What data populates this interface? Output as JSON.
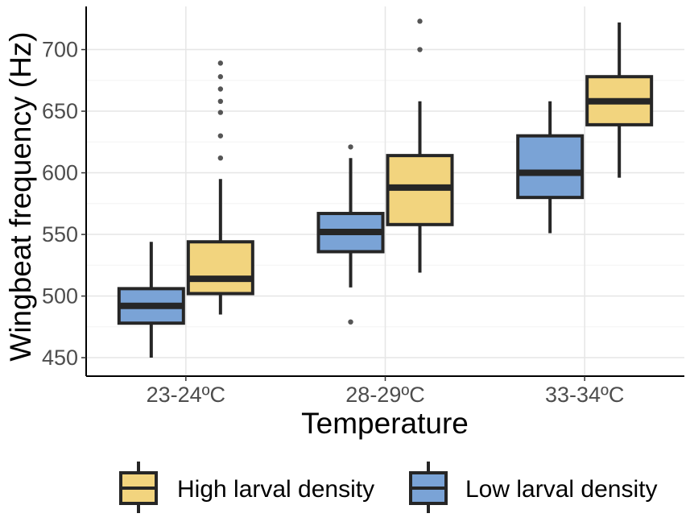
{
  "chart_data": {
    "type": "boxplot",
    "title": "",
    "xlabel": "Temperature",
    "ylabel": "Wingbeat frequency (Hz)",
    "ylim": [
      435,
      735
    ],
    "yticks": [
      450,
      500,
      550,
      600,
      650,
      700
    ],
    "categories": [
      "23-24ºC",
      "28-29ºC",
      "33-34ºC"
    ],
    "grid": true,
    "legend_position": "bottom",
    "series": [
      {
        "name": "Low larval density",
        "color": "#7aa3d6",
        "boxes": [
          {
            "whisker_low": 450,
            "q1": 478,
            "median": 492,
            "q3": 506,
            "whisker_high": 544,
            "outliers": []
          },
          {
            "whisker_low": 507,
            "q1": 536,
            "median": 552,
            "q3": 567,
            "whisker_high": 612,
            "outliers": [
              621,
              479
            ]
          },
          {
            "whisker_low": 551,
            "q1": 580,
            "median": 600,
            "q3": 630,
            "whisker_high": 658,
            "outliers": []
          }
        ]
      },
      {
        "name": "High larval density",
        "color": "#f2d47e",
        "boxes": [
          {
            "whisker_low": 485,
            "q1": 502,
            "median": 514,
            "q3": 544,
            "whisker_high": 595,
            "outliers": [
              612,
              630,
              649,
              658,
              668,
              678,
              689
            ]
          },
          {
            "whisker_low": 519,
            "q1": 558,
            "median": 588,
            "q3": 614,
            "whisker_high": 658,
            "outliers": [
              700,
              723
            ]
          },
          {
            "whisker_low": 596,
            "q1": 639,
            "median": 658,
            "q3": 678,
            "whisker_high": 722,
            "outliers": []
          }
        ]
      }
    ],
    "legend_order": [
      "High larval density",
      "Low larval density"
    ]
  }
}
